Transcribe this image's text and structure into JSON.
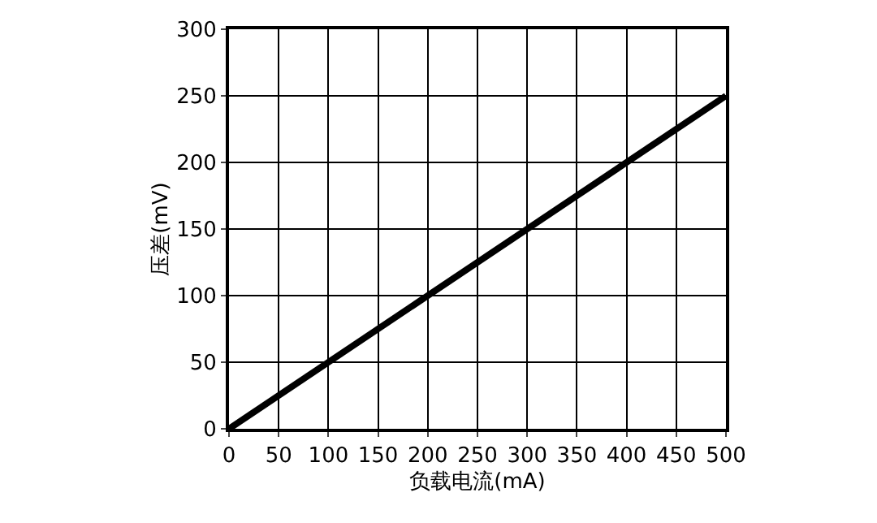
{
  "chart_data": {
    "type": "line",
    "xlabel": "负载电流(mA)",
    "ylabel": "压差(mV)",
    "x": [
      0,
      500
    ],
    "series": [
      {
        "color": "#000000",
        "values": [
          0,
          250
        ]
      }
    ],
    "xlim": [
      0,
      500
    ],
    "xticks": [
      0,
      50,
      100,
      150,
      200,
      250,
      300,
      350,
      400,
      450,
      500
    ],
    "ylim": [
      0,
      300
    ],
    "yticks": [
      0,
      50,
      100,
      150,
      200,
      250,
      300
    ],
    "grid": true,
    "line_style": "solid"
  }
}
